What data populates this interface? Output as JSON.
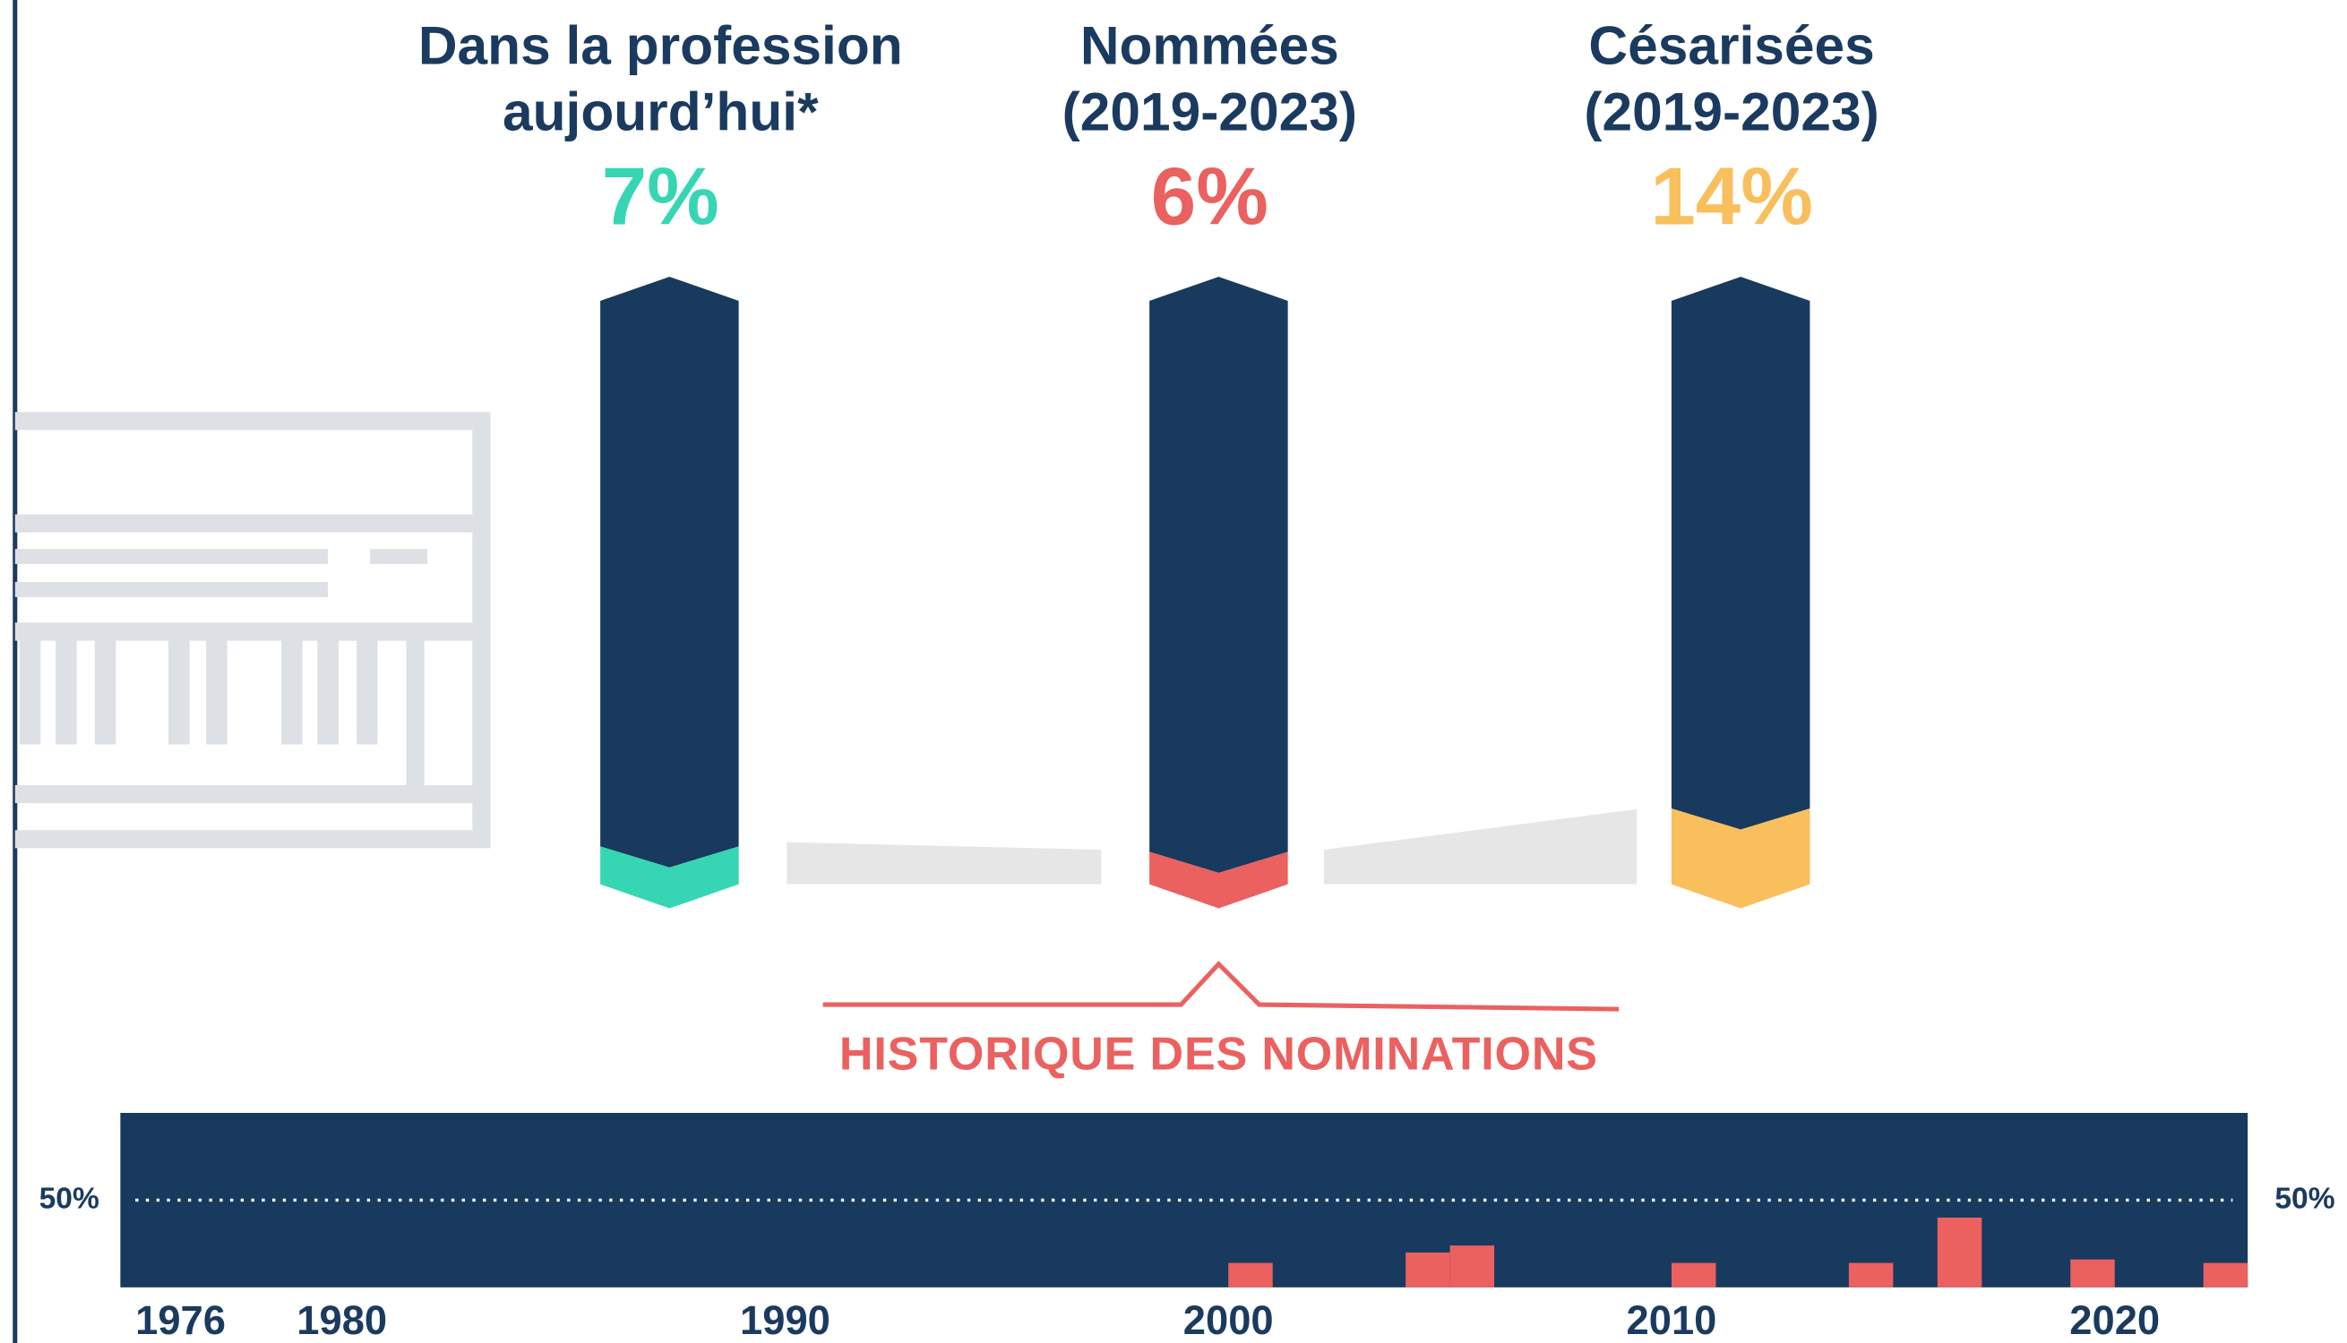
{
  "chart_data": {
    "type": "bar",
    "title": "HISTORIQUE DES NOMINATIONS",
    "x": [
      2000,
      2004,
      2005,
      2010,
      2014,
      2016,
      2019,
      2022
    ],
    "values": [
      14,
      20,
      24,
      14,
      14,
      40,
      16,
      14
    ],
    "color": "#ea6160",
    "xlim": [
      1975,
      2023
    ],
    "xticks": [
      1976,
      1980,
      1990,
      2000,
      2010,
      2020
    ],
    "ylim": [
      0,
      100
    ],
    "yticks": [
      {
        "value": 50,
        "label": "50%"
      }
    ],
    "grid": true
  },
  "stats": [
    {
      "title": [
        "Dans la profession",
        "aujourd’hui*"
      ],
      "value": 7,
      "label": "7%",
      "color": "#36d6b4"
    },
    {
      "title": [
        "Nommées",
        "(2019-2023)"
      ],
      "value": 6,
      "label": "6%",
      "color": "#ea6160"
    },
    {
      "title": [
        "Césarisées",
        "(2019-2023)"
      ],
      "value": 14,
      "label": "14%",
      "color": "#f8bf5c"
    }
  ]
}
